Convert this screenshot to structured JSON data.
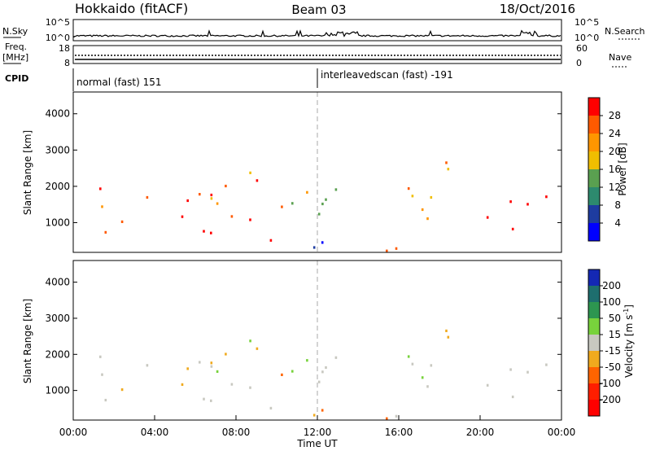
{
  "header": {
    "station": "Hokkaido (fitACF)",
    "beam": "Beam 03",
    "date": "18/Oct/2016"
  },
  "top_panels": {
    "nsky_label": "N.Sky",
    "nsky_ticks": [
      "10^5",
      "10^0"
    ],
    "nsearch_label": "N.Search",
    "nsearch_ticks": [
      "10^5",
      "10^0"
    ],
    "freq_label_1": "Freq.",
    "freq_label_2": "[MHz]",
    "freq_ticks": [
      "18",
      "8"
    ],
    "nave_label": "Nave",
    "nave_ticks": [
      "60",
      "0"
    ],
    "cpid_label": "CPID",
    "cpid_segments": [
      {
        "label": "normal (fast) 151",
        "start_hour": 0
      },
      {
        "label": "interleavedscan (fast) -191",
        "start_hour": 12
      }
    ]
  },
  "chart_data": [
    {
      "type": "heatmap",
      "name": "power",
      "ylabel": "Slant Range [km]",
      "xlabel": "",
      "y_ticks": [
        1000,
        2000,
        3000,
        4000
      ],
      "ylim": [
        180,
        4600
      ],
      "xlim_hours": [
        0,
        24
      ],
      "colorbar": {
        "label": "Power [dB]",
        "ticks": [
          "28",
          "24",
          "20",
          "16",
          "12",
          "8",
          "4"
        ],
        "colors": [
          "#ff0000",
          "#ff5a00",
          "#ff9600",
          "#f0be00",
          "#5aa050",
          "#2d8a6e",
          "#1e3ca0",
          "#0000ff"
        ]
      }
    },
    {
      "type": "heatmap",
      "name": "velocity",
      "ylabel": "Slant Range [km]",
      "xlabel": "Time UT",
      "y_ticks": [
        1000,
        2000,
        3000,
        4000
      ],
      "ylim": [
        180,
        4600
      ],
      "xlim_hours": [
        0,
        24
      ],
      "x_tick_labels": [
        "00:00",
        "04:00",
        "08:00",
        "12:00",
        "16:00",
        "20:00",
        "00:00"
      ],
      "colorbar": {
        "label": "Velocity [m s",
        "label_sup": "-1",
        "label_end": "]",
        "ticks": [
          "200",
          "100",
          "50",
          "15",
          "-15",
          "-50",
          "-100",
          "-200"
        ],
        "colors": [
          "#1428b4",
          "#1e6e6e",
          "#2d9650",
          "#78d23c",
          "#c8c8c0",
          "#f0aa1e",
          "#ff6400",
          "#ff1e00",
          "#ff0000"
        ]
      }
    }
  ],
  "colors": {
    "power_red": "#ff2800",
    "velocity_gray": "#c8c8c0",
    "velocity_green": "#78d23c"
  }
}
